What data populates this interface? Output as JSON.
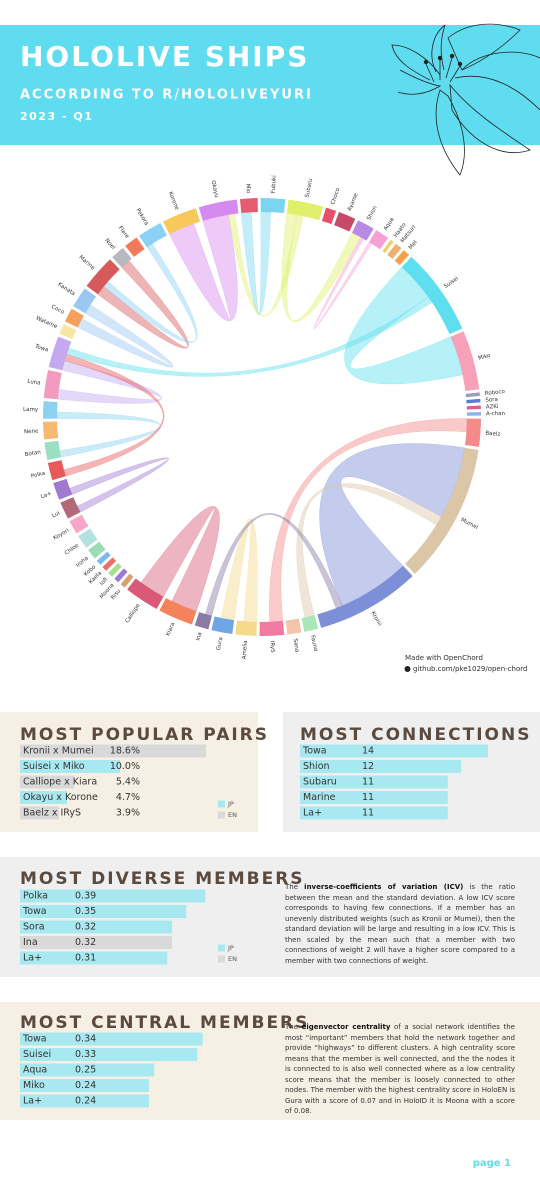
{
  "header": {
    "title": "HOLOLIVE SHIPS",
    "subtitle": "ACCORDING TO R/HOLOLIVEYURI",
    "period": "2023 - Q1"
  },
  "chart_data": [
    {
      "type": "chord",
      "nodes": [
        {
          "name": "Suisei",
          "color": "#5ddff0",
          "weight": 25
        },
        {
          "name": "Miko",
          "color": "#f7a1b8",
          "weight": 17
        },
        {
          "name": "Roboco",
          "color": "#9aa0b8",
          "weight": 1
        },
        {
          "name": "Sora",
          "color": "#5b7bd6",
          "weight": 1
        },
        {
          "name": "AZKi",
          "color": "#e05a8a",
          "weight": 1
        },
        {
          "name": "A-chan",
          "color": "#8fb2e8",
          "weight": 1
        },
        {
          "name": "Baelz",
          "color": "#f48a8a",
          "weight": 8
        },
        {
          "name": "Mumei",
          "color": "#dcc6a8",
          "weight": 40
        },
        {
          "name": "Kronii",
          "color": "#7d8fd6",
          "weight": 30
        },
        {
          "name": "Fauna",
          "color": "#a9e6b8",
          "weight": 4
        },
        {
          "name": "Sana",
          "color": "#f2c4a8",
          "weight": 4
        },
        {
          "name": "IRyS",
          "color": "#f27aa0",
          "weight": 7
        },
        {
          "name": "Amelia",
          "color": "#f4da8a",
          "weight": 6
        },
        {
          "name": "Gura",
          "color": "#6fa6e6",
          "weight": 6
        },
        {
          "name": "Ina",
          "color": "#8a7aa6",
          "weight": 4
        },
        {
          "name": "Kiara",
          "color": "#f4825a",
          "weight": 10
        },
        {
          "name": "Calliope",
          "color": "#d85a78",
          "weight": 10
        },
        {
          "name": "Risu",
          "color": "#d9a070",
          "weight": 1.5
        },
        {
          "name": "Moona",
          "color": "#9a7ad6",
          "weight": 1.5
        },
        {
          "name": "Iofi",
          "color": "#a6e08a",
          "weight": 1.5
        },
        {
          "name": "Kaela",
          "color": "#e6706a",
          "weight": 1.5
        },
        {
          "name": "Kobo",
          "color": "#7ab8f0",
          "weight": 1.5
        },
        {
          "name": "Iroha",
          "color": "#9adcb4",
          "weight": 3
        },
        {
          "name": "Chloe",
          "color": "#b4e0e0",
          "weight": 4
        },
        {
          "name": "Koyori",
          "color": "#f7a8c8",
          "weight": 4
        },
        {
          "name": "Lui",
          "color": "#b26a7a",
          "weight": 5
        },
        {
          "name": "La+",
          "color": "#a07ad0",
          "weight": 5
        },
        {
          "name": "Polka",
          "color": "#e85a5a",
          "weight": 5
        },
        {
          "name": "Botan",
          "color": "#9ae0c0",
          "weight": 5
        },
        {
          "name": "Nene",
          "color": "#f7b870",
          "weight": 5
        },
        {
          "name": "Lamy",
          "color": "#8ad2f0",
          "weight": 5
        },
        {
          "name": "Luna",
          "color": "#f29ac0",
          "weight": 8
        },
        {
          "name": "Towa",
          "color": "#c4a8f0",
          "weight": 9
        },
        {
          "name": "Watame",
          "color": "#f7e6a0",
          "weight": 3
        },
        {
          "name": "Coco",
          "color": "#f7a05a",
          "weight": 4
        },
        {
          "name": "Kanata",
          "color": "#9ac8f0",
          "weight": 6
        },
        {
          "name": "Marine",
          "color": "#d65a5a",
          "weight": 10
        },
        {
          "name": "Noel",
          "color": "#b8b8c0",
          "weight": 4
        },
        {
          "name": "Flare",
          "color": "#f27a5a",
          "weight": 4
        },
        {
          "name": "Pekora",
          "color": "#8ad0f7",
          "weight": 7
        },
        {
          "name": "Korone",
          "color": "#f7c85a",
          "weight": 10
        },
        {
          "name": "Okayu",
          "color": "#d68af0",
          "weight": 11
        },
        {
          "name": "Mio",
          "color": "#e85a70",
          "weight": 5
        },
        {
          "name": "Fubuki",
          "color": "#7ad6f0",
          "weight": 7
        },
        {
          "name": "Subaru",
          "color": "#e0f06a",
          "weight": 10
        },
        {
          "name": "Choco",
          "color": "#e8506a",
          "weight": 3
        },
        {
          "name": "Ayame",
          "color": "#c84a6a",
          "weight": 5
        },
        {
          "name": "Shion",
          "color": "#b88ae6",
          "weight": 5
        },
        {
          "name": "Aqua",
          "color": "#f7a0d8",
          "weight": 4
        },
        {
          "name": "Haato",
          "color": "#f0d070",
          "weight": 1
        },
        {
          "name": "Matsuri",
          "color": "#f0b070",
          "weight": 2
        },
        {
          "name": "Mel",
          "color": "#f7a04a",
          "weight": 2
        }
      ],
      "links": [
        {
          "source": "Kronii",
          "target": "Mumei",
          "weight": 22
        },
        {
          "source": "Suisei",
          "target": "Miko",
          "weight": 12
        },
        {
          "source": "Calliope",
          "target": "Kiara",
          "weight": 8
        },
        {
          "source": "Okayu",
          "target": "Korone",
          "weight": 8
        },
        {
          "source": "Baelz",
          "target": "IRyS",
          "weight": 4
        },
        {
          "source": "Marine",
          "target": "Noel",
          "weight": 3
        },
        {
          "source": "Subaru",
          "target": "Shion",
          "weight": 3
        },
        {
          "source": "Fubuki",
          "target": "Mio",
          "weight": 3
        },
        {
          "source": "Kanata",
          "target": "Coco",
          "weight": 3
        },
        {
          "source": "Amelia",
          "target": "Gura",
          "weight": 4
        },
        {
          "source": "Towa",
          "target": "Luna",
          "weight": 3
        },
        {
          "source": "Mumei",
          "target": "Fauna",
          "weight": 3
        },
        {
          "source": "Lamy",
          "target": "Botan",
          "weight": 2
        },
        {
          "source": "La+",
          "target": "Lui",
          "weight": 2
        },
        {
          "source": "Polka",
          "target": "Towa",
          "weight": 2
        },
        {
          "source": "Subaru",
          "target": "Okayu",
          "weight": 2
        },
        {
          "source": "Pekora",
          "target": "Marine",
          "weight": 2
        },
        {
          "source": "Suisei",
          "target": "Towa",
          "weight": 2
        },
        {
          "source": "Ina",
          "target": "Kronii",
          "weight": 2
        },
        {
          "source": "Aqua",
          "target": "Shion",
          "weight": 1
        }
      ],
      "credit": "Made with OpenChord",
      "source_link": "github.com/pke1029/open-chord"
    },
    {
      "type": "bar",
      "title": "MOST POPULAR PAIRS",
      "categories": [
        "Kronii x Mumei",
        "Suisei x Miko",
        "Calliope x Kiara",
        "Okayu x Korone",
        "Baelz x IRyS"
      ],
      "values": [
        18.6,
        10.0,
        5.4,
        4.7,
        3.9
      ],
      "value_labels": [
        "18.6%",
        "10.0%",
        "5.4%",
        "4.7%",
        "3.9%"
      ],
      "colors": [
        "#d9d9d9",
        "#a8e8f0",
        "#d9d9d9",
        "#a8e8f0",
        "#d9d9d9"
      ],
      "legend": [
        {
          "name": "JP",
          "color": "#a8e8f0"
        },
        {
          "name": "EN",
          "color": "#d9d9d9"
        }
      ],
      "xlim": [
        0,
        20
      ]
    },
    {
      "type": "bar",
      "title": "MOST CONNECTIONS",
      "categories": [
        "Towa",
        "Shion",
        "Subaru",
        "Marine",
        "La+"
      ],
      "values": [
        14,
        12,
        11,
        11,
        11
      ],
      "color": "#a8e8f0",
      "xlim": [
        0,
        14
      ]
    },
    {
      "type": "bar",
      "title": "MOST DIVERSE MEMBERS",
      "categories": [
        "Polka",
        "Towa",
        "Sora",
        "Ina",
        "La+"
      ],
      "values": [
        0.39,
        0.35,
        0.32,
        0.32,
        0.31
      ],
      "colors": [
        "#a8e8f0",
        "#a8e8f0",
        "#a8e8f0",
        "#d9d9d9",
        "#a8e8f0"
      ],
      "legend": [
        {
          "name": "JP",
          "color": "#a8e8f0"
        },
        {
          "name": "EN",
          "color": "#d9d9d9"
        }
      ],
      "xlim": [
        0,
        0.4
      ],
      "description": {
        "before": "The ",
        "bold": "inverse-coefficients of variation (ICV)",
        "after": " is the ratio between the mean and the standard deviation. A low ICV score corresponds to having few connections. If a member has an unevenly distributed weights (such as Kronii or Mumei), then the standard deviation will be large and resulting in a low ICV. This is then scaled by the mean such that a member with two connections of weight 2 will have a higher score compared to a member with two connections of weight."
      }
    },
    {
      "type": "bar",
      "title": "MOST CENTRAL MEMBERS",
      "categories": [
        "Towa",
        "Suisei",
        "Aqua",
        "Miko",
        "La+"
      ],
      "values": [
        0.34,
        0.33,
        0.25,
        0.24,
        0.24
      ],
      "color": "#a8e8f0",
      "xlim": [
        0,
        0.35
      ],
      "description": {
        "before": "The ",
        "bold": "eigenvector centrality",
        "after": " of a social network identifies the most “important” members that hold the network together and provide “highways” to different clusters. A high centrality score means that the member is well connected, and the the nodes it is connected to is also well connected where as a low centrality score means that the member is loosely connected to other nodes. The member with the highest centrality score in HoloEN is Gura with a score of 0.07 and in HoloID it is Moona with a score of 0.08."
      }
    }
  ],
  "footer": {
    "page": "page 1"
  }
}
